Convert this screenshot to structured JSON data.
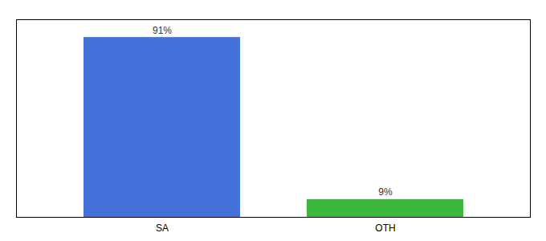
{
  "chart_data": {
    "type": "bar",
    "categories": [
      "SA",
      "OTH"
    ],
    "values": [
      91,
      9
    ],
    "value_labels": [
      "91%",
      "9%"
    ],
    "colors": [
      "#4472db",
      "#3cb83c"
    ],
    "ylim": [
      0,
      100
    ],
    "grid": false,
    "data_labels": true,
    "tick_labels": "x"
  }
}
